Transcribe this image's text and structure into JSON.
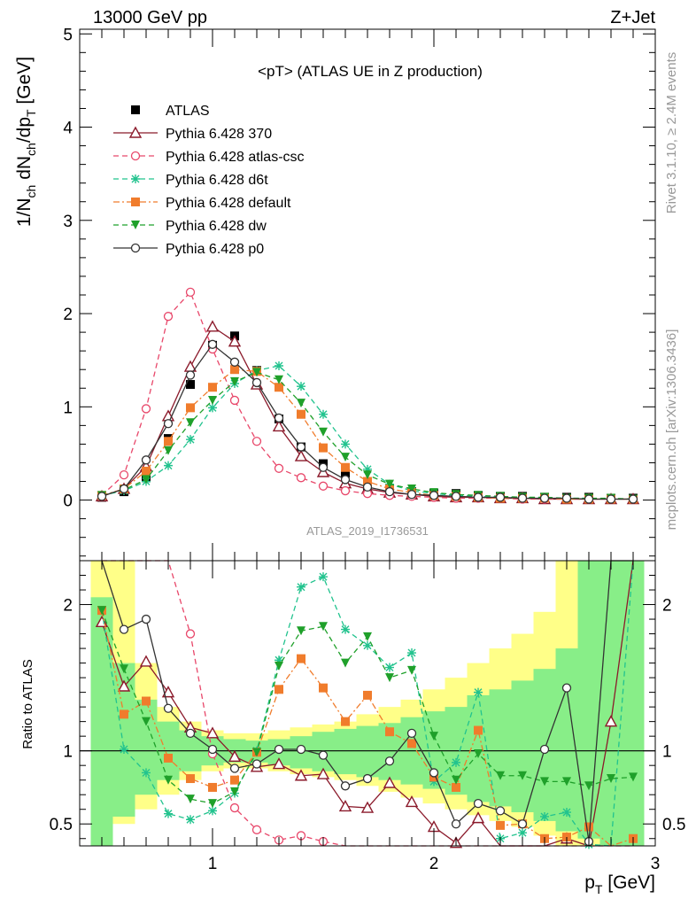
{
  "header": {
    "left": "13000 GeV pp",
    "right": "Z+Jet"
  },
  "side_labels": {
    "rivet": "Rivet 3.1.10, ≥ 2.4M events",
    "mcplots": "mcplots.cern.ch [arXiv:1306.3436]"
  },
  "chart_data": [
    {
      "type": "line",
      "title": "<pT> (ATLAS UE in Z production)",
      "analysis_label": "ATLAS_2019_I1736531",
      "ylabel_main": "1/N",
      "ylabel_parts": [
        "1/N",
        "ch",
        " dN",
        "ch",
        "/dp",
        "T",
        " [GeV]"
      ],
      "xlabel_main": "p",
      "xlabel_sub": "T",
      "xlabel_unit": " [GeV]",
      "xlim": [
        0.4,
        3.0
      ],
      "ylim": [
        -0.65,
        5.05
      ],
      "x_ticks": [
        "1",
        "2",
        "3"
      ],
      "y_ticks": [
        "0",
        "1",
        "2",
        "3",
        "4",
        "5"
      ],
      "legend_position": "top-left",
      "x": [
        0.5,
        0.6,
        0.7,
        0.8,
        0.9,
        1.0,
        1.1,
        1.2,
        1.3,
        1.4,
        1.5,
        1.6,
        1.7,
        1.8,
        1.9,
        2.0,
        2.1,
        2.2,
        2.3,
        2.4,
        2.5,
        2.6,
        2.7,
        2.8,
        2.9
      ],
      "series": [
        {
          "name": "ATLAS",
          "color": "#000000",
          "marker": "square",
          "line": "none",
          "values": [
            0.03,
            0.09,
            0.24,
            0.66,
            1.24,
            1.66,
            1.76,
            1.39,
            0.87,
            0.57,
            0.39,
            0.29,
            0.15,
            0.11,
            0.09,
            0.07,
            0.07,
            0.05,
            0.04,
            0.04,
            0.03,
            0.03,
            0.03,
            0.02,
            0.02
          ]
        },
        {
          "name": "Pythia 6.428 370",
          "color": "#8b1a2b",
          "marker": "triangle-open",
          "line": "solid",
          "values": [
            0.04,
            0.12,
            0.36,
            0.9,
            1.43,
            1.86,
            1.7,
            1.24,
            0.79,
            0.47,
            0.3,
            0.18,
            0.12,
            0.08,
            0.06,
            0.04,
            0.03,
            0.03,
            0.02,
            0.02,
            0.01,
            0.01,
            0.01,
            0.01,
            0.01
          ]
        },
        {
          "name": "Pythia 6.428 atlas-csc",
          "color": "#e8476a",
          "marker": "circle-open",
          "line": "dashed",
          "values": [
            0.05,
            0.27,
            0.98,
            1.97,
            2.23,
            1.62,
            1.07,
            0.63,
            0.34,
            0.24,
            0.15,
            0.1,
            0.07,
            0.05,
            0.04,
            0.03,
            0.02,
            0.02,
            0.02,
            0.01,
            0.01,
            0.01,
            0.01,
            0.01,
            0.01
          ]
        },
        {
          "name": "Pythia 6.428 d6t",
          "color": "#22c38e",
          "marker": "star",
          "line": "dashed",
          "values": [
            0.05,
            0.1,
            0.2,
            0.37,
            0.65,
            0.99,
            1.25,
            1.39,
            1.44,
            1.22,
            0.92,
            0.6,
            0.33,
            0.17,
            0.1,
            0.07,
            0.05,
            0.04,
            0.03,
            0.03,
            0.02,
            0.02,
            0.02,
            0.01,
            0.01
          ]
        },
        {
          "name": "Pythia 6.428 default",
          "color": "#f07c2c",
          "marker": "square",
          "line": "dashdot",
          "values": [
            0.05,
            0.12,
            0.31,
            0.63,
            0.99,
            1.21,
            1.4,
            1.38,
            1.21,
            0.92,
            0.56,
            0.35,
            0.2,
            0.12,
            0.08,
            0.05,
            0.04,
            0.03,
            0.02,
            0.02,
            0.02,
            0.01,
            0.01,
            0.01,
            0.01
          ]
        },
        {
          "name": "Pythia 6.428 dw",
          "color": "#1fa02a",
          "marker": "triangle-down",
          "line": "dashed",
          "values": [
            0.05,
            0.11,
            0.22,
            0.53,
            0.83,
            1.07,
            1.27,
            1.37,
            1.29,
            1.04,
            0.73,
            0.46,
            0.27,
            0.17,
            0.12,
            0.08,
            0.06,
            0.05,
            0.04,
            0.03,
            0.03,
            0.02,
            0.02,
            0.02,
            0.01
          ]
        },
        {
          "name": "Pythia 6.428 p0",
          "color": "#333333",
          "marker": "circle-open",
          "line": "solid",
          "values": [
            0.04,
            0.12,
            0.43,
            0.82,
            1.34,
            1.67,
            1.48,
            1.26,
            0.88,
            0.57,
            0.35,
            0.22,
            0.14,
            0.09,
            0.06,
            0.05,
            0.04,
            0.03,
            0.03,
            0.02,
            0.02,
            0.02,
            0.01,
            0.01,
            0.01
          ]
        }
      ]
    },
    {
      "type": "line",
      "ylabel": "Ratio to ATLAS",
      "xlim": [
        0.4,
        3.0
      ],
      "ylim": [
        0.35,
        2.3
      ],
      "x_ticks": [
        "1",
        "2",
        "3"
      ],
      "y_ticks": [
        "0.5",
        "1",
        "2"
      ],
      "reference_line": 1,
      "x": [
        0.5,
        0.6,
        0.7,
        0.8,
        0.9,
        1.0,
        1.1,
        1.2,
        1.3,
        1.4,
        1.5,
        1.6,
        1.7,
        1.8,
        1.9,
        2.0,
        2.1,
        2.2,
        2.3,
        2.4,
        2.5,
        2.6,
        2.7,
        2.8,
        2.9
      ],
      "band_stat": [
        [
          0.35,
          2.05
        ],
        [
          0.55,
          1.6
        ],
        [
          0.7,
          1.35
        ],
        [
          0.8,
          1.2
        ],
        [
          0.86,
          1.14
        ],
        [
          0.9,
          1.1
        ],
        [
          0.92,
          1.08
        ],
        [
          0.92,
          1.07
        ],
        [
          0.9,
          1.08
        ],
        [
          0.88,
          1.1
        ],
        [
          0.86,
          1.13
        ],
        [
          0.84,
          1.15
        ],
        [
          0.82,
          1.17
        ],
        [
          0.8,
          1.19
        ],
        [
          0.77,
          1.23
        ],
        [
          0.74,
          1.27
        ],
        [
          0.7,
          1.3
        ],
        [
          0.65,
          1.38
        ],
        [
          0.62,
          1.42
        ],
        [
          0.58,
          1.48
        ],
        [
          0.52,
          1.56
        ],
        [
          0.45,
          1.7
        ],
        [
          0.4,
          2.3
        ],
        [
          0.35,
          2.3
        ],
        [
          0.35,
          2.3
        ]
      ],
      "band_total": [
        [
          0.35,
          2.3
        ],
        [
          0.5,
          2.3
        ],
        [
          0.6,
          1.6
        ],
        [
          0.7,
          1.3
        ],
        [
          0.8,
          1.2
        ],
        [
          0.86,
          1.14
        ],
        [
          0.88,
          1.12
        ],
        [
          0.88,
          1.12
        ],
        [
          0.86,
          1.14
        ],
        [
          0.84,
          1.16
        ],
        [
          0.82,
          1.18
        ],
        [
          0.8,
          1.2
        ],
        [
          0.76,
          1.25
        ],
        [
          0.72,
          1.3
        ],
        [
          0.68,
          1.35
        ],
        [
          0.64,
          1.42
        ],
        [
          0.6,
          1.5
        ],
        [
          0.56,
          1.6
        ],
        [
          0.52,
          1.7
        ],
        [
          0.48,
          1.8
        ],
        [
          0.42,
          1.95
        ],
        [
          0.35,
          2.3
        ],
        [
          0.35,
          2.3
        ],
        [
          0.35,
          2.3
        ],
        [
          0.35,
          2.3
        ]
      ],
      "series": [
        {
          "name": "Pythia 6.428 370",
          "color": "#8b1a2b",
          "marker": "triangle-open",
          "line": "solid",
          "values": [
            1.88,
            1.44,
            1.61,
            1.4,
            1.16,
            1.12,
            0.96,
            0.89,
            0.91,
            0.83,
            0.84,
            0.62,
            0.61,
            0.78,
            0.65,
            0.48,
            0.37,
            0.54,
            0.33,
            0.3,
            0.28,
            0.4,
            0.33,
            1.2,
            2.3
          ]
        },
        {
          "name": "Pythia 6.428 atlas-csc",
          "color": "#e8476a",
          "marker": "circle-open",
          "line": "dashed",
          "values": [
            2.3,
            2.3,
            2.3,
            2.3,
            1.8,
            0.98,
            0.61,
            0.46,
            0.39,
            0.42,
            0.38,
            0.34,
            0.33,
            0.31,
            0.32,
            0.33,
            0.33,
            0.35,
            0.35,
            0.34,
            0.32,
            0.33,
            0.3,
            0.33,
            0.35
          ]
        },
        {
          "name": "Pythia 6.428 d6t",
          "color": "#22c38e",
          "marker": "star",
          "line": "dashed",
          "values": [
            1.96,
            1.01,
            0.85,
            0.57,
            0.53,
            0.59,
            0.71,
            1.0,
            1.62,
            2.12,
            2.19,
            1.83,
            1.72,
            1.57,
            1.67,
            0.79,
            0.92,
            1.4,
            0.4,
            0.44,
            0.55,
            0.58,
            0.36,
            0.35,
            2.3
          ]
        },
        {
          "name": "Pythia 6.428 default",
          "color": "#f07c2c",
          "marker": "square",
          "line": "dashdot",
          "values": [
            1.96,
            1.25,
            1.34,
            0.95,
            0.81,
            0.75,
            0.8,
            0.99,
            1.42,
            1.63,
            1.43,
            1.2,
            1.38,
            1.13,
            1.05,
            0.82,
            0.75,
            1.14,
            0.49,
            0.5,
            0.4,
            0.41,
            0.48,
            0.35,
            0.4
          ]
        },
        {
          "name": "Pythia 6.428 dw",
          "color": "#1fa02a",
          "marker": "triangle-down",
          "line": "dashed",
          "values": [
            1.96,
            1.56,
            1.2,
            0.8,
            0.67,
            0.64,
            0.72,
            0.99,
            1.58,
            1.82,
            1.85,
            1.6,
            1.78,
            1.5,
            1.55,
            1.1,
            0.8,
            0.98,
            0.83,
            0.83,
            0.79,
            0.79,
            0.76,
            0.81,
            0.82
          ]
        },
        {
          "name": "Pythia 6.428 p0",
          "color": "#333333",
          "marker": "circle-open",
          "line": "solid",
          "values": [
            2.3,
            1.83,
            1.9,
            1.29,
            1.12,
            1.01,
            0.88,
            0.91,
            1.01,
            1.01,
            0.97,
            0.76,
            0.81,
            0.93,
            1.12,
            0.85,
            0.5,
            0.64,
            0.59,
            0.5,
            1.01,
            1.43,
            0.38,
            2.3,
            2.3
          ]
        }
      ]
    }
  ]
}
